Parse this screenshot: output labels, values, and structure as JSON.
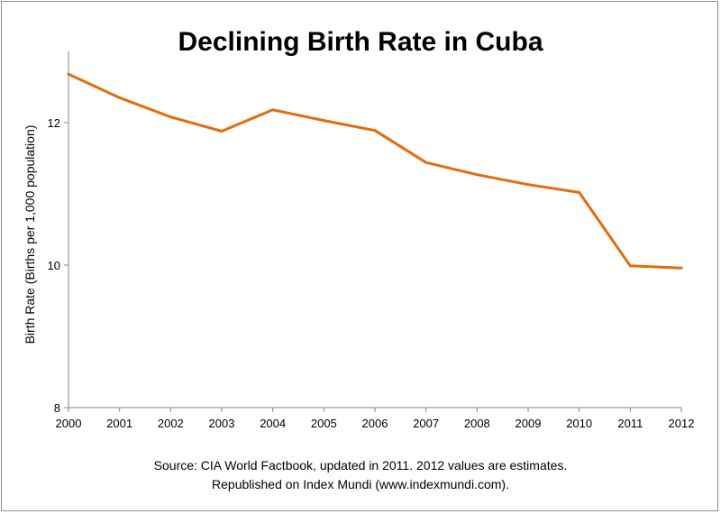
{
  "chart_data": {
    "type": "line",
    "title": "Declining Birth Rate in Cuba",
    "xlabel": "",
    "ylabel": "Birth Rate (Births per 1,000 population)",
    "x": [
      "2000",
      "2001",
      "2002",
      "2003",
      "2004",
      "2005",
      "2006",
      "2007",
      "2008",
      "2009",
      "2010",
      "2011",
      "2012"
    ],
    "series": [
      {
        "values": [
          12.68,
          12.35,
          12.08,
          11.88,
          12.18,
          12.03,
          11.89,
          11.44,
          11.27,
          11.13,
          11.02,
          9.99,
          9.96
        ]
      }
    ],
    "ylim": [
      8,
      13
    ],
    "yticks": [
      8,
      10,
      12
    ],
    "grid": false,
    "legend": "none",
    "line_color": "#E46C0A"
  },
  "source_lines": [
    "Source: CIA World Factbook, updated in 2011. 2012 values are estimates.",
    "Republished on Index Mundi (www.indexmundi.com)."
  ]
}
